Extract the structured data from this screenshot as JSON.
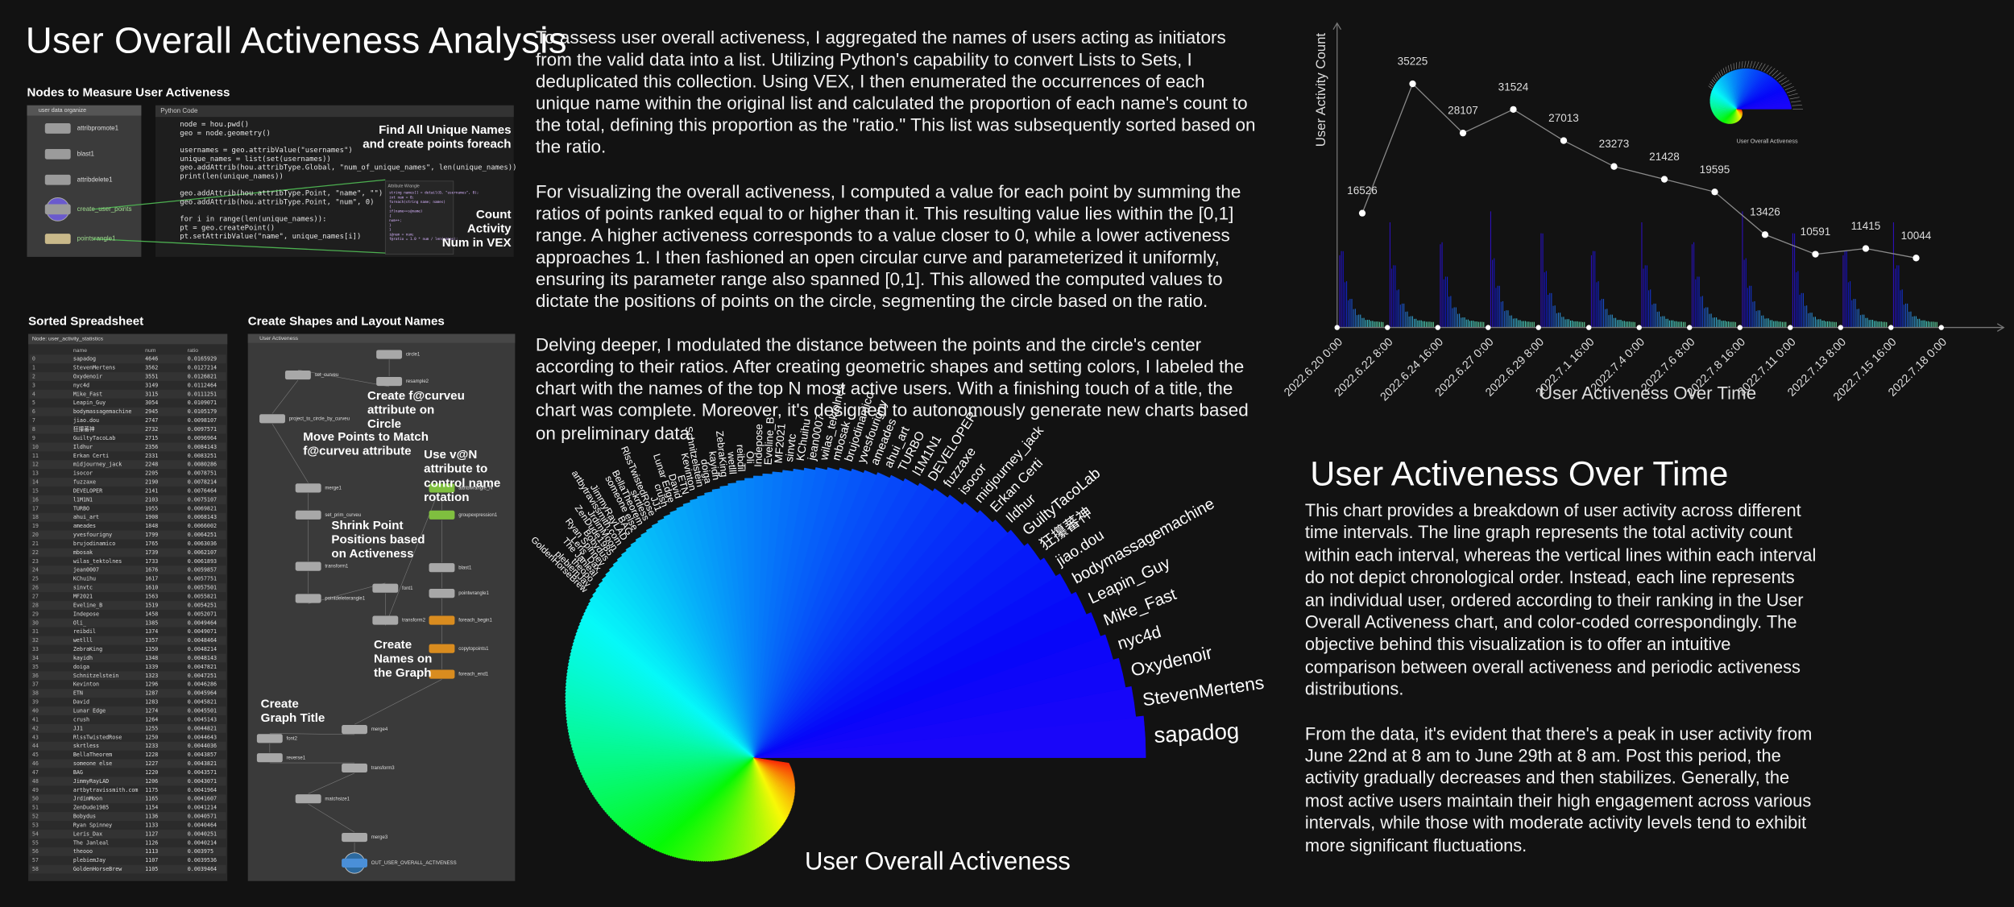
{
  "title": "User Overall Activeness Analysis",
  "nodes_panel": {
    "title": "Nodes to Measure User Activeness",
    "network": "user data organize",
    "nodes": [
      "attribpromote1",
      "blast1",
      "attribdelete1",
      "create_user_points",
      "pointsrangle1"
    ]
  },
  "code_panel": {
    "header": "Python Code",
    "lines": [
      "node = hou.pwd()",
      "geo = node.geometry()",
      "",
      "usernames = geo.attribValue(\"usernames\")",
      "unique_names = list(set(usernames))",
      "geo.addAttrib(hou.attribType.Global, \"num_of_unique_names\", len(unique_names))",
      "print(len(unique_names))",
      "",
      "geo.addAttrib(hou.attribType.Point, \"name\", \"\")",
      "geo.addAttrib(hou.attribType.Point, \"num\", 0)",
      "",
      "for i in range(len(unique_names)):",
      "    pt = geo.createPoint()",
      "    pt.setAttribValue(\"name\", unique_names[i])"
    ],
    "note_unique": "Find All Unique Names and create points foreach",
    "note_count": "Count Activity Num in VEX",
    "vex_header": "Attribute Wrangle",
    "vex_lines": [
      "string names[] = detail(0, \"usernames\", 0);",
      "int num = 0;",
      "foreach(string name; names)",
      "{",
      "    if(name==s@name)",
      "    {",
      "        num++;",
      "    }",
      "}",
      "i@num = num;",
      "f@ratio = 1.0 * num / len(names);"
    ]
  },
  "spreadsheet": {
    "title": "Sorted Spreadsheet",
    "node": "Node: user_activity_statistics",
    "columns": [
      "name",
      "num",
      "ratio"
    ],
    "rows": [
      [
        0,
        "sapadog",
        4646,
        0.0165929
      ],
      [
        1,
        "StevenMertens",
        3562,
        0.0127214
      ],
      [
        2,
        "Oxydenoir",
        3551,
        0.0126821
      ],
      [
        3,
        "nyc4d",
        3149,
        0.0112464
      ],
      [
        4,
        "Mike_Fast",
        3115,
        0.0111251
      ],
      [
        5,
        "Leapin_Guy",
        3054,
        0.0109071
      ],
      [
        6,
        "bodymassagemachine",
        2945,
        0.0105179
      ],
      [
        7,
        "jiao.dou",
        2747,
        0.0098107
      ],
      [
        8,
        "狂攥蕃神",
        2732,
        0.0097571
      ],
      [
        9,
        "GuiltyTacoLab",
        2715,
        0.0096964
      ],
      [
        10,
        "Ildhur",
        2356,
        0.0084143
      ],
      [
        11,
        "Erkan Certi",
        2331,
        0.0083251
      ],
      [
        12,
        "midjourney_jack",
        2248,
        0.0080286
      ],
      [
        13,
        "isocor",
        2205,
        0.0078751
      ],
      [
        14,
        "fuzzaxe",
        2190,
        0.0078214
      ],
      [
        15,
        "DEVELOPER",
        2141,
        0.0076464
      ],
      [
        16,
        "l1M1N1",
        2103,
        0.0075107
      ],
      [
        17,
        "TURBO",
        1955,
        0.0069821
      ],
      [
        18,
        "ahui_art",
        1908,
        0.0068143
      ],
      [
        19,
        "ameades",
        1848,
        0.0066002
      ],
      [
        20,
        "yvesfourigny",
        1799,
        0.0064251
      ],
      [
        21,
        "brujodinamico",
        1765,
        0.0063036
      ],
      [
        22,
        "mbosak",
        1739,
        0.0062107
      ],
      [
        23,
        "wilas_tektolnes",
        1733,
        0.0061893
      ],
      [
        24,
        "jean0007",
        1676,
        0.0059857
      ],
      [
        25,
        "KChuihu",
        1617,
        0.0057751
      ],
      [
        26,
        "sinvtc",
        1610,
        0.0057501
      ],
      [
        27,
        "MF2021",
        1563,
        0.0055821
      ],
      [
        28,
        "Eveline_B",
        1519,
        0.0054251
      ],
      [
        29,
        "Indepose",
        1458,
        0.0052071
      ],
      [
        30,
        "Oli_",
        1385,
        0.0049464
      ],
      [
        31,
        "reibdil",
        1374,
        0.0049071
      ],
      [
        32,
        "wetlll",
        1357,
        0.0048464
      ],
      [
        33,
        "ZebraKing",
        1350,
        0.0048214
      ],
      [
        34,
        "kayidh",
        1348,
        0.0048143
      ],
      [
        35,
        "doiga",
        1339,
        0.0047821
      ],
      [
        36,
        "Schnitzelstein",
        1323,
        0.0047251
      ],
      [
        37,
        "Kevinton",
        1296,
        0.0046286
      ],
      [
        38,
        "ETN",
        1287,
        0.0045964
      ],
      [
        39,
        "David",
        1283,
        0.0045821
      ],
      [
        40,
        "Lunar Edge",
        1274,
        0.0045501
      ],
      [
        41,
        "crush",
        1264,
        0.0045143
      ],
      [
        42,
        "JJ1",
        1255,
        0.0044821
      ],
      [
        43,
        "RlssTwistedRose",
        1250,
        0.0044643
      ],
      [
        44,
        "skrtless",
        1233,
        0.0044036
      ],
      [
        45,
        "BellaTheorem",
        1228,
        0.0043857
      ],
      [
        46,
        "someone else",
        1227,
        0.0043821
      ],
      [
        47,
        "BAG",
        1220,
        0.0043571
      ],
      [
        48,
        "JimmyRayLAD",
        1206,
        0.0043071
      ],
      [
        49,
        "artbytravissmith.com",
        1175,
        0.0041964
      ],
      [
        50,
        "JrdimMoon",
        1165,
        0.0041607
      ],
      [
        51,
        "ZenDude1985",
        1154,
        0.0041214
      ],
      [
        52,
        "Bobydus",
        1136,
        0.0040571
      ],
      [
        53,
        "Ryan Spinney",
        1133,
        0.0040464
      ],
      [
        54,
        "Leris_Dax",
        1127,
        0.0040251
      ],
      [
        55,
        "The Janleal",
        1126,
        0.0040214
      ],
      [
        56,
        "theooo",
        1113,
        0.003975
      ],
      [
        57,
        "plebiemJay",
        1107,
        0.0039536
      ],
      [
        58,
        "GoldenHorseBrew",
        1105,
        0.0039464
      ]
    ]
  },
  "shapes_panel": {
    "title": "Create Shapes and Layout Names",
    "network": "User Activeness",
    "nodes": [
      "circle1",
      "resample2",
      "set_curveu",
      "project_to_circle_by_curveu",
      "merge1",
      "set_prim_curveu",
      "transform1",
      "pointdeleterangle1",
      "font1",
      "transform2",
      "attribwrangle_N",
      "groupexpression1",
      "blast1",
      "pointwrangle1",
      "foreach_begin1",
      "copytopoints1",
      "foreach_end1",
      "merge4",
      "font2",
      "reverse1",
      "transform3",
      "matchsize1",
      "merge3",
      "OUT_USER_OVERALL_ACTIVENESS"
    ],
    "notes": [
      "Create  f@curveu attribute on Circle",
      "Move Points to Match f@curveu  attribute",
      "Use  v@N  attribute to control name rotation",
      "Shrink Point Positions based on Activeness",
      "Create Names on the Graph",
      "Create Graph Title"
    ]
  },
  "description": [
    "To assess user overall activeness, I aggregated the names of users acting as initiators from the valid data into a list. Utilizing Python's capability to convert Lists to Sets, I deduplicated this collection. Using VEX, I then enumerated the occurrences of each unique name within the original list and calculated the proportion of each name's count to the total, defining this proportion as the \"ratio.\" This list was subsequently sorted based on the ratio.",
    "For visualizing the overall activeness, I computed a value for each point by summing the ratios of points ranked equal to or higher than it. This resulting value lies within the [0,1] range. A higher activeness corresponds to a value closer to 0, while a lower activeness approaches 1. I then fashioned an open circular curve and parameterized it uniformly, ensuring its parameter range also spanned [0,1]. This allowed the computed values to dictate the positions of points on the circle, segmenting the circle based on the ratio.",
    "Delving deeper, I modulated the distance between the points and the circle's center according to their ratios. After creating geometric shapes and setting colors, I labeled the chart with the names of the top N most active users. With a finishing touch of a title, the chart was complete. Moreover, it's designed to autonomously generate new charts based on preliminary data."
  ],
  "chart_data": [
    {
      "type": "line",
      "xlabel": "User Activeness Over Time",
      "ylabel": "User Activity Count",
      "categories": [
        "2022.6.20 0:00",
        "2022.6.22 8:00",
        "2022.6.24 16:00",
        "2022.6.27 0:00",
        "2022.6.29 8:00",
        "2022.7.1 16:00",
        "2022.7.4 0:00",
        "2022.7.6 8:00",
        "2022.7.8 16:00",
        "2022.7.11 0:00",
        "2022.7.13 8:00",
        "2022.7.15 16:00",
        "2022.7.18 0:00"
      ],
      "values": [
        16526,
        35225,
        28107,
        31524,
        27013,
        23273,
        21428,
        19595,
        13426,
        10591,
        11415,
        10044,
        null
      ],
      "ylim": [
        0,
        44000
      ],
      "line_color": "#8a8a8a",
      "point_color": "#ffffff"
    },
    {
      "type": "fan",
      "title": "User Overall Activeness"
    }
  ],
  "over_time": {
    "title": "User Activeness Over Time",
    "paragraphs": [
      "This chart provides a breakdown of user activity across different time intervals. The line graph represents the total activity count within each interval, whereas the vertical lines within each interval do not depict chronological order. Instead, each line represents an individual user, ordered according to their ranking in the User Overall Activeness chart, and color-coded correspondingly. The objective behind this visualization is to offer an intuitive comparison between overall activeness and periodic activeness distributions.",
      "From the data, it's evident that there's a peak in user activity from June 22nd at 8 am to June 29th at 8 am. Post this period, the activity gradually decreases and then stabilizes. Generally, the most active users maintain their high engagement across various intervals, while those with moderate activity levels tend to exhibit more significant fluctuations."
    ]
  }
}
